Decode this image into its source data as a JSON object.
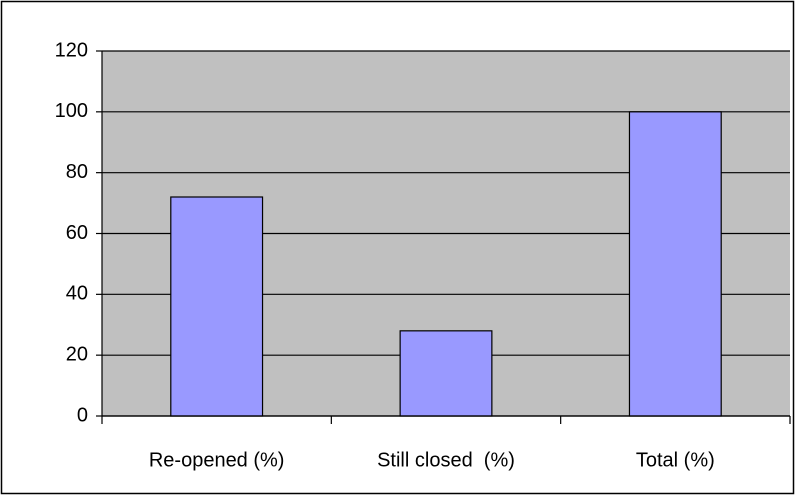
{
  "chart_data": {
    "type": "bar",
    "categories": [
      "Re-opened (%)",
      "Still closed  (%)",
      "Total (%)"
    ],
    "values": [
      72,
      28,
      100
    ],
    "color": "#9999ff",
    "ylim": [
      0,
      120
    ],
    "yticks": [
      0,
      20,
      40,
      60,
      80,
      100,
      120
    ],
    "grid": true
  }
}
